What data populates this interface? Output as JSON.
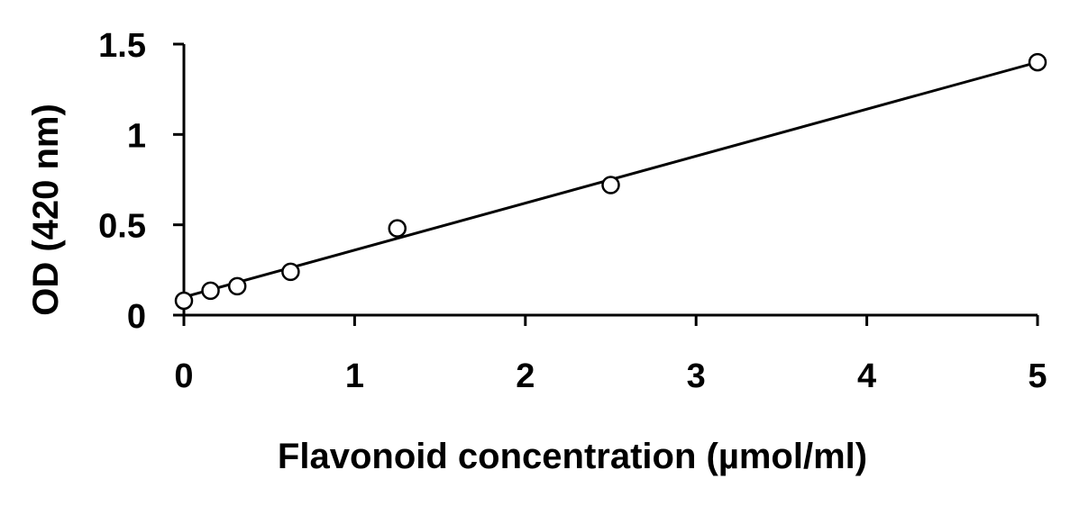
{
  "chart_data": {
    "type": "scatter",
    "title": "",
    "xlabel": "Flavonoid concentration (µmol/ml)",
    "ylabel": "OD (420 nm)",
    "xlim": [
      0,
      5
    ],
    "ylim": [
      0,
      1.5
    ],
    "x_ticks": [
      0,
      1,
      2,
      3,
      4,
      5
    ],
    "x_tick_labels": [
      "0",
      "1",
      "2",
      "3",
      "4",
      "5"
    ],
    "y_ticks": [
      0,
      0.5,
      1,
      1.5
    ],
    "y_tick_labels": [
      "0",
      "0.5",
      "1",
      "1.5"
    ],
    "grid": false,
    "legend": "none",
    "series": [
      {
        "marker": "open-circle",
        "points": [
          {
            "x": 0,
            "y": 0.08
          },
          {
            "x": 0.156,
            "y": 0.135
          },
          {
            "x": 0.3125,
            "y": 0.16
          },
          {
            "x": 0.625,
            "y": 0.24
          },
          {
            "x": 1.25,
            "y": 0.48
          },
          {
            "x": 2.5,
            "y": 0.72
          },
          {
            "x": 5,
            "y": 1.4
          }
        ]
      }
    ],
    "trendline": {
      "type": "linear",
      "x": [
        0,
        5
      ],
      "y": [
        0.1,
        1.4
      ]
    }
  }
}
